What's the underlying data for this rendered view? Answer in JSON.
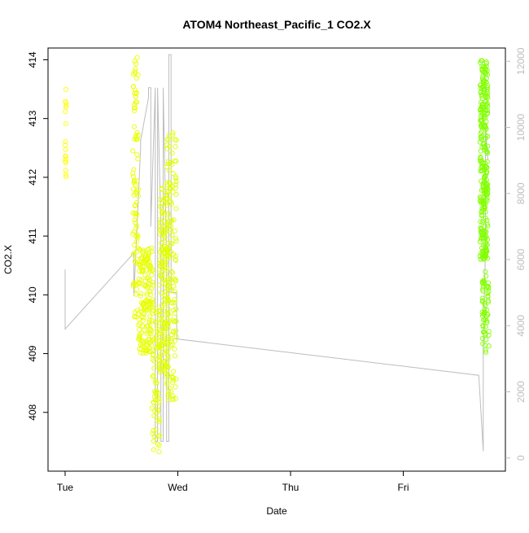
{
  "chart_data": {
    "type": "scatter",
    "title": "ATOM4 Northeast_Pacific_1 CO2.X",
    "xlabel": "Date",
    "ylabel": "CO2.X",
    "x_ticks": [
      "Tue",
      "Wed",
      "Thu",
      "Fri"
    ],
    "x_tick_days": [
      0,
      1,
      2,
      3
    ],
    "xlim_days": [
      -0.14,
      3.88
    ],
    "ylim": [
      407.0,
      414.2
    ],
    "y_ticks": [
      408,
      409,
      410,
      411,
      412,
      413,
      414
    ],
    "y2lim": [
      -400,
      12400
    ],
    "y2_ticks": [
      0,
      2000,
      4000,
      6000,
      8000,
      10000,
      12000
    ],
    "grid": false,
    "series": [
      {
        "kind": "points",
        "color_start": "#ffff00",
        "color_end": "#7fff00",
        "clusters": [
          {
            "x_start": 0.0,
            "x_end": 0.01,
            "y_min": 411.7,
            "y_max": 413.5,
            "count": 18
          },
          {
            "x_start": 0.6,
            "x_end": 0.65,
            "y_min": 409.6,
            "y_max": 414.05,
            "count": 90
          },
          {
            "x_start": 0.65,
            "x_end": 0.78,
            "y_min": 409.0,
            "y_max": 410.8,
            "count": 170
          },
          {
            "x_start": 0.77,
            "x_end": 0.84,
            "y_min": 407.3,
            "y_max": 409.8,
            "count": 70
          },
          {
            "x_start": 0.84,
            "x_end": 0.92,
            "y_min": 408.6,
            "y_max": 411.9,
            "count": 150
          },
          {
            "x_start": 0.9,
            "x_end": 0.99,
            "y_min": 408.2,
            "y_max": 412.9,
            "count": 140
          },
          {
            "x_start": 3.68,
            "x_end": 3.75,
            "y_min": 410.6,
            "y_max": 414.0,
            "count": 280
          },
          {
            "x_start": 3.7,
            "x_end": 3.76,
            "y_min": 409.0,
            "y_max": 410.4,
            "count": 60
          }
        ]
      },
      {
        "kind": "line",
        "axis": "right",
        "color": "#bdbdbd",
        "x": [
          0.0,
          0.0,
          0.61,
          0.61,
          0.67,
          0.67,
          0.74,
          0.74,
          0.76,
          0.76,
          0.8,
          0.8,
          0.82,
          0.82,
          0.85,
          0.85,
          0.87,
          0.87,
          0.9,
          0.9,
          0.92,
          0.92,
          0.94,
          0.94,
          0.99,
          0.99,
          3.67,
          3.71,
          3.71,
          3.73,
          3.73,
          3.75
        ],
        "y": [
          5700,
          3900,
          6200,
          4900,
          9400,
          9600,
          10900,
          11200,
          11200,
          7000,
          11200,
          500,
          500,
          11200,
          7000,
          500,
          500,
          11200,
          6000,
          500,
          500,
          12200,
          12200,
          5000,
          5000,
          3600,
          2500,
          200,
          3500,
          6400,
          10000,
          9000
        ]
      }
    ]
  }
}
